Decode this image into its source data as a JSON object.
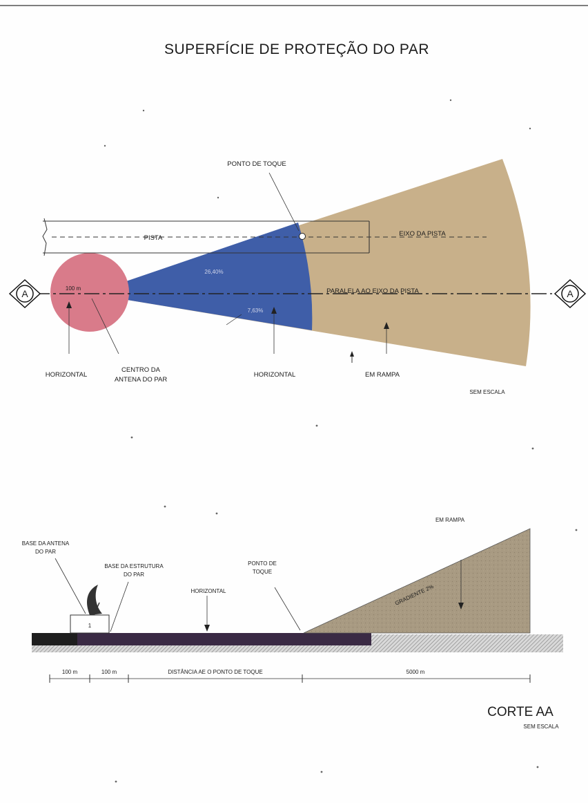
{
  "title": "SUPERFÍCIE DE PROTEÇÃO DO PAR",
  "plan_view": {
    "section_marker_letter": "A",
    "labels": {
      "touch_point": "PONTO DE TOQUE",
      "runway": "PISTA",
      "runway_axis": "EIXO DA PISTA",
      "parallel_axis": "PARALELA AO EIXO DA PISTA",
      "radius": "100 m",
      "angle_upper": "26,40%",
      "angle_lower": "7,63%",
      "horizontal_left": "HORIZONTAL",
      "antenna_center": "CENTRO DA ANTENA DO PAR",
      "horizontal_mid": "HORIZONTAL",
      "ramp": "EM RAMPA",
      "no_scale": "SEM ESCALA"
    },
    "colors": {
      "circle": "#d97b8a",
      "sector_blue": "#3f5ea8",
      "sector_tan": "#c8b08a"
    }
  },
  "section_view": {
    "labels": {
      "antenna_base": "BASE DA ANTENA DO PAR",
      "structure_base": "BASE DA ESTRUTURA DO PAR",
      "horizontal": "HORIZONTAL",
      "touch_point": "PONTO DE TOQUE",
      "ramp": "EM RAMPA",
      "gradient": "GRADIENTE 2%",
      "structure_mark": "1"
    },
    "dimensions": [
      "100 m",
      "100 m",
      "DISTÂNCIA AE O PONTO DE TOQUE",
      "5000 m"
    ],
    "title": "CORTE AA",
    "no_scale": "SEM ESCALA",
    "colors": {
      "ramp": "#a89a82",
      "ground": "#3a2a44"
    }
  }
}
